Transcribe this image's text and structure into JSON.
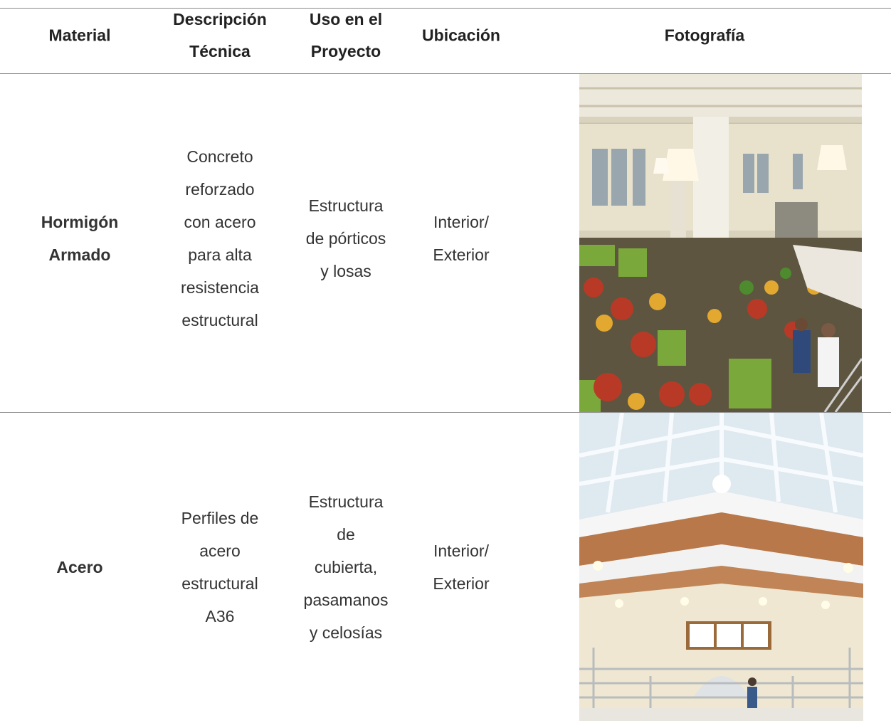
{
  "table": {
    "headers": [
      [
        "Material"
      ],
      [
        "Descripción",
        "Técnica"
      ],
      [
        "Uso en el",
        "Proyecto"
      ],
      [
        "Ubicación"
      ],
      [
        "Fotografía"
      ]
    ],
    "rows": [
      [
        [
          "Hormigón",
          "Armado"
        ],
        [
          "Concreto",
          "reforzado",
          "con acero",
          "para alta",
          "resistencia",
          "estructural"
        ],
        [
          "Estructura",
          "de pórticos",
          "y losas"
        ],
        [
          "Interior/",
          "Exterior"
        ]
      ],
      [
        [
          "Acero"
        ],
        [
          "Perfiles de",
          "acero",
          "estructural",
          "A36"
        ],
        [
          "Estructura",
          "de",
          "cubierta,",
          "pasamanos",
          "y celosías"
        ],
        [
          "Interior/",
          "Exterior"
        ]
      ]
    ]
  }
}
